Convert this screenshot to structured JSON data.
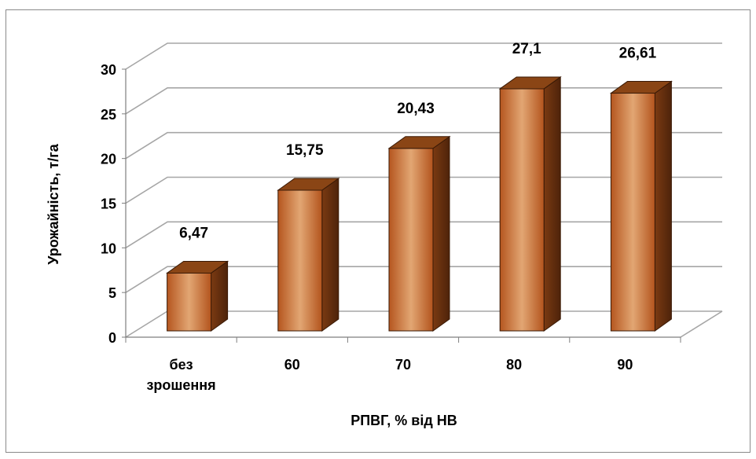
{
  "chart_data": {
    "type": "bar",
    "xlabel": "РПВГ, % від НВ",
    "ylabel": "Урожайність, т/га",
    "categories": [
      [
        "без",
        "зрошення"
      ],
      [
        "60"
      ],
      [
        "70"
      ],
      [
        "80"
      ],
      [
        "90"
      ]
    ],
    "values": [
      6.47,
      15.75,
      20.43,
      27.1,
      26.61
    ],
    "value_labels": [
      "6,47",
      "15,75",
      "20,43",
      "27,1",
      "26,61"
    ],
    "ylim": [
      0,
      30
    ],
    "y_ticks": [
      "0",
      "5",
      "10",
      "15",
      "20",
      "25",
      "30"
    ],
    "grid": true,
    "legend": "none",
    "style": "3d-column",
    "colors": {
      "bar_front_edge": "#b5561f",
      "bar_front_center": "#e2a673",
      "bar_side": "#6e3210",
      "bar_top": "#8a4515",
      "grid": "#a6a6a6"
    }
  }
}
